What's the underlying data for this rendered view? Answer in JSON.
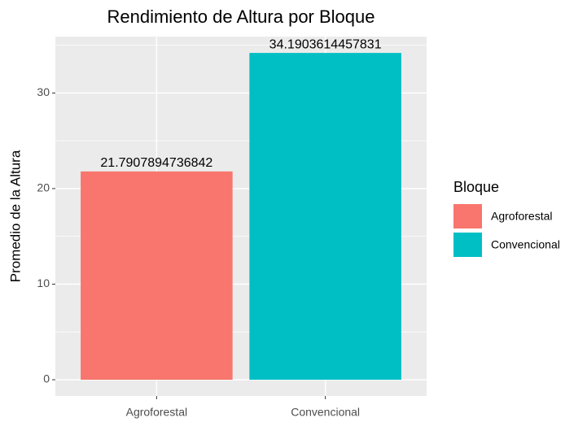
{
  "chart_data": {
    "type": "bar",
    "title": "Rendimiento de Altura por Bloque",
    "y_label": "Promedio de la Altura",
    "categories": [
      "Agroforestal",
      "Convencional"
    ],
    "values": [
      21.7907894736842,
      34.1903614457831
    ],
    "colors": [
      "#F8766D",
      "#00BFC4"
    ],
    "ylim": [
      -1.7,
      35.9
    ],
    "yticks": [
      0,
      10,
      20,
      30
    ],
    "y_minor_grid": [
      5,
      15,
      25,
      35
    ],
    "grid": true,
    "legend": {
      "title": "Bloque",
      "position": "right"
    }
  }
}
